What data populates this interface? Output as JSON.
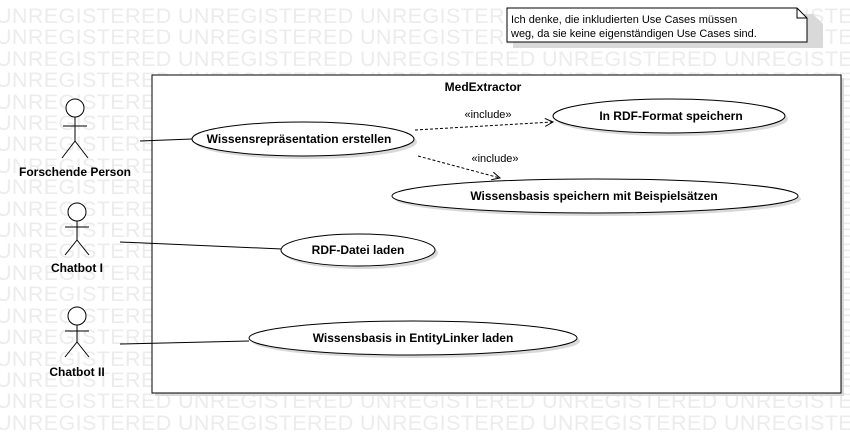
{
  "watermark": {
    "word": "UNREGISTERED"
  },
  "system": {
    "title": "MedExtractor"
  },
  "actors": [
    {
      "id": "forschende-person",
      "label": "Forschende Person"
    },
    {
      "id": "chatbot-1",
      "label": "Chatbot I"
    },
    {
      "id": "chatbot-2",
      "label": "Chatbot II"
    }
  ],
  "use_cases": [
    {
      "id": "wissensrepraesentation",
      "label": "Wissensrepräsentation erstellen"
    },
    {
      "id": "rdf-format",
      "label": "In RDF-Format speichern"
    },
    {
      "id": "beispielsaetze",
      "label": "Wissensbasis speichern mit Beispielsätzen"
    },
    {
      "id": "rdf-laden",
      "label": "RDF-Datei laden"
    },
    {
      "id": "entitylinker",
      "label": "Wissensbasis in EntityLinker laden"
    }
  ],
  "relations": {
    "include_label_1": "«include»",
    "include_label_2": "«include»"
  },
  "note": {
    "lines": [
      "Ich denke, die inkludierten Use Cases müssen",
      "weg, da sie keine eigenständigen Use Cases sind."
    ]
  },
  "colors": {
    "watermark": "#ececec",
    "line": "#000000",
    "fill": "#ffffff"
  }
}
